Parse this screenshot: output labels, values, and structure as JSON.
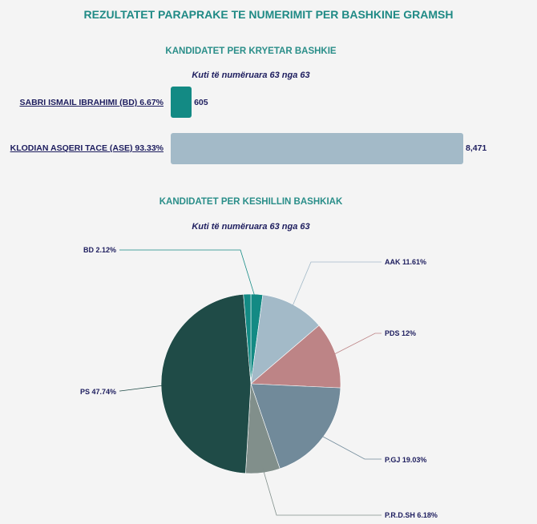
{
  "page": {
    "title": "REZULTATET PARAPRAKE TE NUMERIMIT PER BASHKINE GRAMSH"
  },
  "mayor": {
    "section_title": "KANDIDATET PER KRYETAR BASHKIE",
    "subtitle": "Kuti të numëruara 63 nga 63",
    "candidates": [
      {
        "label": "SABRI ISMAIL IBRAHIMI (BD) 6.67%",
        "value_text": "605"
      },
      {
        "label": "KLODIAN ASQERI TACE (ASE) 93.33%",
        "value_text": "8,471"
      }
    ]
  },
  "council": {
    "section_title": "KANDIDATET PER KESHILLIN BASHKIAK",
    "subtitle": "Kuti të numëruara 63 nga 63"
  },
  "chart_data": [
    {
      "type": "bar",
      "orientation": "horizontal",
      "title": "KANDIDATET PER KRYETAR BASHKIE",
      "subtitle": "Kuti të numëruara 63 nga 63",
      "categories": [
        "SABRI ISMAIL IBRAHIMI (BD) 6.67%",
        "KLODIAN ASQERI TACE (ASE) 93.33%"
      ],
      "values": [
        605,
        8471
      ],
      "colors": [
        "#138a84",
        "#a3bac8"
      ]
    },
    {
      "type": "pie",
      "title": "KANDIDATET PER KESHILLIN BASHKIAK",
      "subtitle": "Kuti të numëruara 63 nga 63",
      "slices": [
        {
          "label": "BD 2.12%",
          "value": 2.12,
          "color": "#138a84",
          "side": "left"
        },
        {
          "label": "AAK 11.61%",
          "value": 11.61,
          "color": "#a3bac8",
          "side": "right"
        },
        {
          "label": "PDS 12%",
          "value": 12.0,
          "color": "#bd8486",
          "side": "right"
        },
        {
          "label": "P.GJ 19.03%",
          "value": 19.03,
          "color": "#718a9a",
          "side": "right"
        },
        {
          "label": "P.R.D.SH 6.18%",
          "value": 6.18,
          "color": "#818f8b",
          "side": "right"
        },
        {
          "label": "PS 47.74%",
          "value": 47.74,
          "color": "#1f4b47",
          "side": "left"
        }
      ],
      "leftover_color": "#138a84",
      "start_angle_deg": 0,
      "direction": "clockwise"
    }
  ]
}
